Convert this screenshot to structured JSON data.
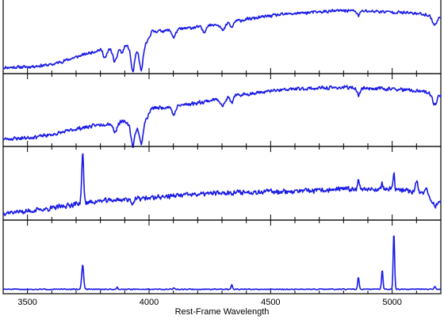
{
  "chart_data": {
    "type": "line",
    "xlabel": "Rest-Frame Wavelength",
    "xlim": [
      3400,
      5200
    ],
    "x_ticks": [
      3500,
      4000,
      4500,
      5000
    ],
    "x_tick_labels": [
      "3500",
      "4000",
      "4500",
      "5000"
    ],
    "minor_tick_step": 100,
    "grid": false,
    "line_color": "#1a1ae6",
    "panels": [
      {
        "ylim": [
          0,
          1
        ],
        "continuum": [
          [
            3400,
            0.08
          ],
          [
            3500,
            0.09
          ],
          [
            3600,
            0.12
          ],
          [
            3700,
            0.22
          ],
          [
            3800,
            0.32
          ],
          [
            3900,
            0.38
          ],
          [
            3950,
            0.3
          ],
          [
            3990,
            0.4
          ],
          [
            4010,
            0.56
          ],
          [
            4100,
            0.58
          ],
          [
            4200,
            0.62
          ],
          [
            4300,
            0.67
          ],
          [
            4400,
            0.72
          ],
          [
            4500,
            0.77
          ],
          [
            4600,
            0.8
          ],
          [
            4700,
            0.82
          ],
          [
            4800,
            0.84
          ],
          [
            4900,
            0.83
          ],
          [
            5000,
            0.82
          ],
          [
            5100,
            0.8
          ],
          [
            5200,
            0.76
          ]
        ],
        "features": [
          [
            3820,
            -0.12,
            8
          ],
          [
            3860,
            -0.2,
            9
          ],
          [
            3889,
            -0.1,
            6
          ],
          [
            3933,
            -0.3,
            7
          ],
          [
            3968,
            -0.3,
            7
          ],
          [
            4102,
            -0.1,
            7
          ],
          [
            4226,
            -0.08,
            7
          ],
          [
            4304,
            -0.1,
            9
          ],
          [
            4340,
            -0.08,
            6
          ],
          [
            4861,
            -0.06,
            6
          ],
          [
            5175,
            -0.12,
            10
          ]
        ],
        "noise": 0.025,
        "seed": 11
      },
      {
        "ylim": [
          0,
          1
        ],
        "continuum": [
          [
            3400,
            0.1
          ],
          [
            3500,
            0.12
          ],
          [
            3600,
            0.16
          ],
          [
            3700,
            0.24
          ],
          [
            3800,
            0.3
          ],
          [
            3900,
            0.34
          ],
          [
            3950,
            0.26
          ],
          [
            3990,
            0.38
          ],
          [
            4010,
            0.52
          ],
          [
            4100,
            0.55
          ],
          [
            4200,
            0.6
          ],
          [
            4300,
            0.66
          ],
          [
            4400,
            0.72
          ],
          [
            4500,
            0.76
          ],
          [
            4600,
            0.79
          ],
          [
            4700,
            0.8
          ],
          [
            4800,
            0.81
          ],
          [
            4900,
            0.8
          ],
          [
            5000,
            0.79
          ],
          [
            5100,
            0.76
          ],
          [
            5200,
            0.72
          ]
        ],
        "features": [
          [
            3860,
            -0.12,
            8
          ],
          [
            3933,
            -0.28,
            7
          ],
          [
            3968,
            -0.28,
            7
          ],
          [
            4102,
            -0.12,
            7
          ],
          [
            4304,
            -0.1,
            9
          ],
          [
            4340,
            -0.08,
            6
          ],
          [
            4861,
            -0.1,
            6
          ],
          [
            5175,
            -0.15,
            10
          ]
        ],
        "noise": 0.03,
        "seed": 23
      },
      {
        "ylim": [
          0,
          1
        ],
        "continuum": [
          [
            3400,
            0.1
          ],
          [
            3500,
            0.12
          ],
          [
            3600,
            0.16
          ],
          [
            3700,
            0.22
          ],
          [
            3800,
            0.26
          ],
          [
            3900,
            0.28
          ],
          [
            4000,
            0.3
          ],
          [
            4100,
            0.33
          ],
          [
            4200,
            0.35
          ],
          [
            4300,
            0.37
          ],
          [
            4400,
            0.38
          ],
          [
            4500,
            0.39
          ],
          [
            4600,
            0.39
          ],
          [
            4700,
            0.4
          ],
          [
            4800,
            0.42
          ],
          [
            4900,
            0.42
          ],
          [
            5000,
            0.42
          ],
          [
            5100,
            0.38
          ],
          [
            5200,
            0.25
          ]
        ],
        "features": [
          [
            3727,
            0.66,
            4
          ],
          [
            3933,
            -0.06,
            6
          ],
          [
            4861,
            0.14,
            4
          ],
          [
            4959,
            0.08,
            3
          ],
          [
            5007,
            0.22,
            3
          ],
          [
            5100,
            0.16,
            5
          ],
          [
            5140,
            0.12,
            6
          ],
          [
            5175,
            -0.1,
            8
          ]
        ],
        "noise": 0.04,
        "seed": 37
      },
      {
        "ylim": [
          0,
          1
        ],
        "continuum": [
          [
            3400,
            0.06
          ],
          [
            5200,
            0.06
          ]
        ],
        "features": [
          [
            3727,
            0.33,
            4
          ],
          [
            3869,
            0.03,
            3
          ],
          [
            4102,
            0.02,
            3
          ],
          [
            4340,
            0.06,
            3
          ],
          [
            4861,
            0.16,
            3
          ],
          [
            4959,
            0.26,
            3
          ],
          [
            5007,
            0.77,
            3
          ],
          [
            5176,
            0.04,
            3
          ]
        ],
        "noise": 0.008,
        "seed": 51
      }
    ]
  }
}
